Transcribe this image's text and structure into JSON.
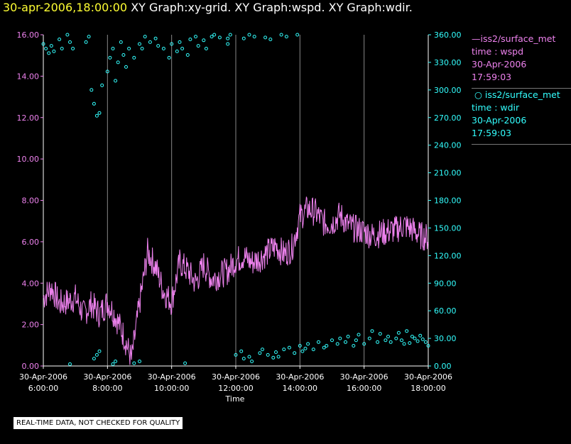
{
  "header": {
    "date": "30-apr-2006,18:00:00",
    "graphs": "XY Graph:xy-grid.  XY Graph:wspd.  XY Graph:wdir."
  },
  "footer": {
    "note": "REAL-TIME DATA, NOT CHECKED FOR QUALITY"
  },
  "legend": {
    "wspd": {
      "source": "iss2/surface_met",
      "var": "time : wspd",
      "date": "30-Apr-2006",
      "time": "17:59:03"
    },
    "wdir": {
      "source": "iss2/surface_met",
      "var": "time : wdir",
      "date": "30-Apr-2006",
      "time": "17:59:03"
    }
  },
  "colors": {
    "wspd": "#ee82ee",
    "wdir": "#33ffff",
    "grid": "#888888",
    "axis": "#ffffff",
    "date": "#ffff33"
  },
  "chart_data": {
    "type": "line",
    "title": "",
    "xlabel": "Time",
    "x_range_hours": [
      6,
      18
    ],
    "x_ticks": [
      {
        "h": 6,
        "date": "30-Apr-2006",
        "time": "6:00:00"
      },
      {
        "h": 8,
        "date": "30-Apr-2006",
        "time": "8:00:00"
      },
      {
        "h": 10,
        "date": "30-Apr-2006",
        "time": "10:00:00"
      },
      {
        "h": 12,
        "date": "30-Apr-2006",
        "time": "12:00:00"
      },
      {
        "h": 14,
        "date": "30-Apr-2006",
        "time": "14:00:00"
      },
      {
        "h": 16,
        "date": "30-Apr-2006",
        "time": "16:00:00"
      },
      {
        "h": 18,
        "date": "30-Apr-2006",
        "time": "18:00:00"
      }
    ],
    "y_left": {
      "label": "wspd",
      "range": [
        0,
        16
      ],
      "ticks": [
        "0.00",
        "2.00",
        "4.00",
        "6.00",
        "8.00",
        "10.00",
        "12.00",
        "14.00",
        "16.00"
      ]
    },
    "y_right": {
      "label": "wdir",
      "range": [
        0,
        360
      ],
      "ticks": [
        "0.00",
        "30.00",
        "60.00",
        "90.00",
        "120.00",
        "150.00",
        "180.00",
        "210.00",
        "240.00",
        "270.00",
        "300.00",
        "330.00",
        "360.00"
      ]
    },
    "series": [
      {
        "name": "wspd",
        "style": "line",
        "axis": "left",
        "x": [
          6.0,
          6.25,
          6.5,
          6.75,
          7.0,
          7.25,
          7.5,
          7.75,
          8.0,
          8.25,
          8.5,
          8.75,
          9.0,
          9.25,
          9.5,
          9.75,
          10.0,
          10.25,
          10.5,
          10.75,
          11.0,
          11.25,
          11.5,
          11.75,
          12.0,
          12.25,
          12.5,
          12.75,
          13.0,
          13.25,
          13.5,
          13.75,
          14.0,
          14.25,
          14.5,
          14.75,
          15.0,
          15.25,
          15.5,
          15.75,
          16.0,
          16.25,
          16.5,
          16.75,
          17.0,
          17.25,
          17.5,
          17.75,
          18.0
        ],
        "values": [
          3.3,
          3.8,
          3.0,
          3.1,
          3.3,
          2.5,
          3.0,
          2.5,
          3.1,
          2.4,
          1.5,
          0.3,
          3.0,
          5.5,
          4.8,
          3.6,
          3.1,
          5.0,
          4.6,
          4.0,
          4.9,
          4.2,
          4.4,
          4.6,
          5.1,
          5.3,
          5.0,
          5.2,
          5.5,
          5.8,
          5.4,
          5.7,
          7.2,
          7.6,
          7.4,
          6.9,
          6.9,
          7.3,
          6.8,
          6.6,
          6.5,
          6.3,
          6.4,
          6.5,
          6.6,
          6.8,
          6.6,
          6.3,
          6.2
        ]
      },
      {
        "name": "wdir",
        "style": "scatter",
        "axis": "right",
        "x": [
          6.0,
          6.08,
          6.17,
          6.25,
          6.33,
          6.5,
          6.58,
          6.75,
          6.83,
          6.92,
          7.33,
          7.42,
          7.5,
          7.58,
          7.67,
          7.75,
          7.83,
          8.0,
          8.08,
          8.17,
          8.25,
          8.33,
          8.42,
          8.5,
          8.58,
          8.67,
          8.83,
          9.0,
          9.08,
          9.17,
          9.33,
          9.5,
          9.58,
          9.75,
          9.92,
          10.0,
          10.17,
          10.25,
          10.33,
          10.5,
          10.58,
          10.75,
          10.83,
          11.0,
          11.08,
          11.25,
          11.33,
          11.5,
          11.75,
          11.83,
          12.0,
          12.17,
          12.25,
          12.42,
          12.5,
          12.75,
          12.83,
          13.0,
          13.17,
          13.25,
          13.33,
          13.5,
          13.67,
          13.83,
          14.0,
          14.08,
          14.17,
          14.25,
          14.42,
          14.58,
          14.75,
          14.83,
          15.0,
          15.17,
          15.25,
          15.42,
          15.5,
          15.67,
          15.75,
          15.83,
          16.0,
          16.17,
          16.25,
          16.42,
          16.5,
          16.67,
          16.75,
          16.83,
          17.0,
          17.08,
          17.17,
          17.25,
          17.33,
          17.42,
          17.5,
          17.58,
          17.67,
          17.75,
          17.83,
          17.92,
          18.0,
          6.83,
          7.58,
          7.67,
          7.75,
          8.17,
          8.25,
          8.83,
          9.0,
          10.42,
          11.75,
          12.25,
          12.42,
          12.58,
          12.92,
          13.08,
          13.42,
          13.58,
          13.92
        ],
        "values": [
          350,
          345,
          340,
          348,
          342,
          355,
          345,
          360,
          352,
          345,
          352,
          358,
          300,
          285,
          272,
          275,
          305,
          320,
          335,
          345,
          310,
          330,
          352,
          338,
          325,
          345,
          335,
          350,
          345,
          358,
          352,
          356,
          348,
          345,
          335,
          350,
          342,
          352,
          345,
          338,
          355,
          358,
          348,
          354,
          345,
          358,
          360,
          357,
          356,
          360,
          12,
          16,
          8,
          10,
          5,
          14,
          18,
          12,
          9,
          15,
          10,
          18,
          20,
          14,
          22,
          16,
          19,
          24,
          18,
          26,
          20,
          22,
          28,
          24,
          30,
          26,
          32,
          22,
          28,
          34,
          24,
          30,
          38,
          26,
          35,
          28,
          32,
          26,
          30,
          36,
          28,
          24,
          38,
          25,
          32,
          30,
          27,
          33,
          29,
          26,
          22,
          2,
          8,
          12,
          16,
          2,
          5,
          3,
          5,
          3,
          350,
          356,
          360,
          358,
          357,
          355,
          360,
          358,
          360
        ]
      }
    ]
  }
}
